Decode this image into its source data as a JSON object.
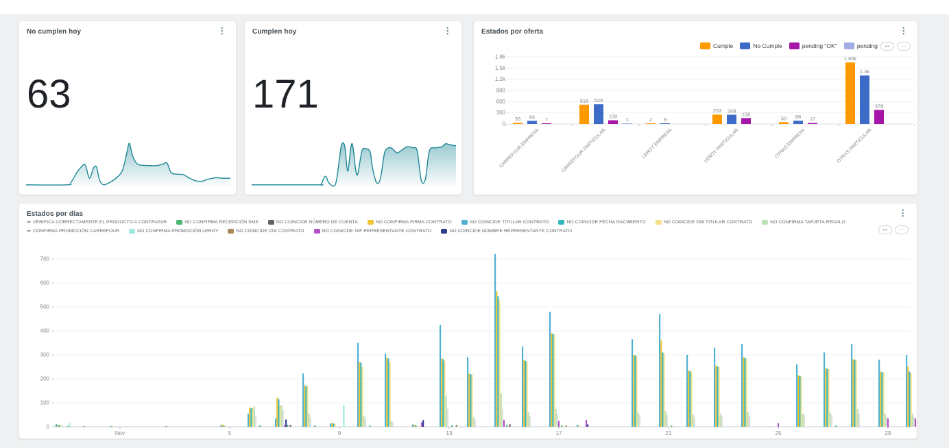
{
  "page": {
    "canvas_bg": "#eff0f1",
    "top_strip_bg": "#ffffff",
    "card_bg": "#ffffff",
    "chip_icon_a": "●●",
    "chip_icon_b": "──"
  },
  "chart_data": [
    {
      "type": "scorecard_sparkline",
      "title": "No cumplen hoy",
      "value": "63",
      "menu_icon": "⋮",
      "spark_color": "#1b8795",
      "spark_points": [
        [
          0,
          3
        ],
        [
          20,
          3
        ],
        [
          22,
          8
        ],
        [
          25,
          28
        ],
        [
          27,
          38
        ],
        [
          29,
          42
        ],
        [
          31,
          16
        ],
        [
          33,
          36
        ],
        [
          34.5,
          38
        ],
        [
          36,
          12
        ],
        [
          38,
          3
        ],
        [
          41,
          8
        ],
        [
          44,
          16
        ],
        [
          47,
          30
        ],
        [
          49,
          60
        ],
        [
          50.5,
          85
        ],
        [
          52,
          62
        ],
        [
          54,
          46
        ],
        [
          56,
          42
        ],
        [
          60,
          41
        ],
        [
          64,
          41
        ],
        [
          67,
          44
        ],
        [
          69,
          46
        ],
        [
          71,
          27
        ],
        [
          74,
          24
        ],
        [
          77,
          23
        ],
        [
          80,
          16
        ],
        [
          83,
          11
        ],
        [
          86,
          10
        ],
        [
          89,
          14
        ],
        [
          93,
          17
        ],
        [
          96,
          16
        ],
        [
          100,
          16
        ]
      ]
    },
    {
      "type": "scorecard_sparkline",
      "title": "Cumplen hoy",
      "value": "171",
      "menu_icon": "⋮",
      "spark_color": "#1b8795",
      "spark_points": [
        [
          0,
          3
        ],
        [
          32,
          3
        ],
        [
          34,
          4
        ],
        [
          36,
          20
        ],
        [
          38,
          6
        ],
        [
          41,
          4
        ],
        [
          43,
          55
        ],
        [
          44,
          82
        ],
        [
          45.5,
          80
        ],
        [
          47,
          30
        ],
        [
          48.5,
          76
        ],
        [
          49.5,
          80
        ],
        [
          51,
          30
        ],
        [
          52,
          26
        ],
        [
          54,
          70
        ],
        [
          56,
          74
        ],
        [
          58,
          68
        ],
        [
          59,
          40
        ],
        [
          61,
          8
        ],
        [
          63,
          15
        ],
        [
          65,
          65
        ],
        [
          67,
          76
        ],
        [
          69,
          74
        ],
        [
          71,
          66
        ],
        [
          73,
          70
        ],
        [
          76,
          78
        ],
        [
          79,
          76
        ],
        [
          81,
          70
        ],
        [
          83,
          12
        ],
        [
          85,
          14
        ],
        [
          87,
          70
        ],
        [
          90,
          76
        ],
        [
          93,
          78
        ],
        [
          95,
          84
        ],
        [
          97,
          82
        ],
        [
          100,
          80
        ]
      ]
    },
    {
      "type": "bar",
      "title": "Estados por oferta",
      "menu_icon": "⋮",
      "legend_position": "top-right",
      "grid": true,
      "ylim": [
        0,
        1800
      ],
      "y_ticks": [
        "0",
        "300",
        "600",
        "900",
        "1.2k",
        "1.5k",
        "1.8k"
      ],
      "y_step": 300,
      "categories": [
        "CARREFOUR EMPRESA",
        "CARREFOUR PARTICULAR",
        "LEROY EMPRESA",
        "LEROY PARTICULAR",
        "OTRAS EMPRESA",
        "OTRAS PARTICULAR"
      ],
      "series": [
        {
          "name": "Cumple",
          "color": "#ff9900",
          "values": [
            33,
            518,
            2,
            253,
            50,
            1650
          ],
          "labels": [
            "33",
            "518",
            "2",
            "253",
            "50",
            "1.65k"
          ]
        },
        {
          "name": "No Cumple",
          "color": "#3d6cc8",
          "values": [
            84,
            529,
            9,
            248,
            88,
            1300
          ],
          "labels": [
            "84",
            "529",
            "9",
            "248",
            "88",
            "1.3k"
          ]
        },
        {
          "name": "pending \"OK\"",
          "color": "#a616a8",
          "values": [
            7,
            100,
            0,
            158,
            27,
            378
          ],
          "labels": [
            "7",
            "100",
            "",
            "158",
            "27",
            "378"
          ]
        },
        {
          "name": "pending",
          "color": "#a2ace4",
          "values": [
            0,
            1,
            0,
            0,
            0,
            0
          ],
          "labels": [
            "",
            "1",
            "",
            "",
            "",
            ""
          ]
        }
      ]
    },
    {
      "type": "bar",
      "title": "Estados por días",
      "menu_icon": "⋮",
      "grid": true,
      "ylim": [
        0,
        760
      ],
      "y_ticks": [
        "0",
        "100",
        "200",
        "300",
        "400",
        "500",
        "600",
        "700"
      ],
      "y_step": 100,
      "days": 32,
      "x_ticks": [
        {
          "index": 2,
          "label": "Nov"
        },
        {
          "index": 6,
          "label": "5"
        },
        {
          "index": 10,
          "label": "9"
        },
        {
          "index": 14,
          "label": "13"
        },
        {
          "index": 18,
          "label": "17"
        },
        {
          "index": 22,
          "label": "21"
        },
        {
          "index": 26,
          "label": "25"
        },
        {
          "index": 30,
          "label": "29"
        }
      ],
      "legend_rows": [
        8,
        5
      ],
      "draw_order": [
        4,
        3,
        5,
        6,
        7,
        8,
        11,
        12,
        1,
        9,
        2,
        10,
        0
      ],
      "series": [
        {
          "name": "VERIFICA CORRECTAMENTE EL PRODUCTO A CONTRATAR",
          "color": "#ffffff",
          "legend_swatch": "dash",
          "values": [
            0,
            0,
            0,
            0,
            0,
            0,
            0,
            0,
            0,
            0,
            0,
            0,
            0,
            0,
            0,
            0,
            0,
            0,
            0,
            0,
            0,
            0,
            0,
            0,
            0,
            0,
            0,
            0,
            0,
            0,
            0,
            0
          ]
        },
        {
          "name": "NO CONFIRMA RECEPCIÓN SMS",
          "color": "#4db56f",
          "legend_swatch": "box",
          "values": [
            3,
            0,
            0,
            0,
            0,
            0,
            0,
            6,
            8,
            6,
            0,
            5,
            0,
            0,
            6,
            0,
            8,
            0,
            6,
            0,
            0,
            0,
            5,
            0,
            0,
            0,
            0,
            0,
            5,
            0,
            0,
            0
          ]
        },
        {
          "name": "NO COINCIDE NÚMERO DE CUENTA",
          "color": "#5f6368",
          "legend_swatch": "box",
          "values": [
            0,
            0,
            0,
            0,
            0,
            0,
            0,
            0,
            8,
            0,
            0,
            0,
            0,
            0,
            0,
            0,
            10,
            0,
            0,
            0,
            0,
            0,
            0,
            0,
            0,
            0,
            0,
            0,
            0,
            0,
            0,
            0
          ]
        },
        {
          "name": "NO CONFIRMA FIRMA CONTRATO",
          "color": "#f1c232",
          "legend_swatch": "box",
          "values": [
            8,
            2,
            2,
            0,
            2,
            0,
            10,
            80,
            122,
            172,
            15,
            270,
            288,
            8,
            285,
            222,
            565,
            278,
            390,
            5,
            0,
            300,
            360,
            235,
            255,
            290,
            0,
            215,
            245,
            282,
            230,
            250
          ]
        },
        {
          "name": "NO COINCIDE TITULAR CONTRATO",
          "color": "#4fb0d4",
          "legend_swatch": "box",
          "values": [
            12,
            3,
            3,
            0,
            3,
            0,
            6,
            55,
            35,
            222,
            14,
            350,
            305,
            10,
            425,
            290,
            720,
            335,
            480,
            8,
            0,
            365,
            470,
            300,
            330,
            345,
            0,
            260,
            310,
            345,
            280,
            300
          ]
        },
        {
          "name": "NO COINCIDE FECHA NACIMIENTO",
          "color": "#35b7c0",
          "legend_swatch": "box",
          "values": [
            8,
            0,
            0,
            0,
            0,
            0,
            5,
            78,
            115,
            170,
            14,
            268,
            285,
            6,
            282,
            220,
            545,
            275,
            388,
            0,
            0,
            298,
            310,
            232,
            252,
            288,
            0,
            212,
            242,
            280,
            228,
            230
          ]
        },
        {
          "name": "NO COINCIDE DNI TITULAR CONTRATO",
          "color": "#f6e08e",
          "legend_swatch": "box",
          "values": [
            6,
            0,
            0,
            0,
            0,
            0,
            4,
            80,
            90,
            168,
            12,
            250,
            270,
            5,
            275,
            218,
            530,
            270,
            385,
            0,
            0,
            295,
            305,
            230,
            250,
            285,
            0,
            210,
            240,
            278,
            225,
            225
          ]
        },
        {
          "name": "NO CONFIRMA TARJETA REGALO",
          "color": "#bce0b6",
          "legend_swatch": "box",
          "values": [
            4,
            0,
            0,
            0,
            0,
            0,
            0,
            85,
            90,
            55,
            0,
            45,
            25,
            0,
            130,
            40,
            140,
            60,
            75,
            0,
            0,
            60,
            65,
            50,
            55,
            60,
            0,
            55,
            60,
            75,
            55,
            55
          ]
        },
        {
          "name": "CONFIRMA PROMOCIÓN CARREFOUR",
          "color": "#dcdfda",
          "legend_swatch": "dash",
          "values": [
            0,
            0,
            0,
            0,
            0,
            0,
            0,
            45,
            70,
            35,
            0,
            35,
            20,
            0,
            75,
            30,
            75,
            45,
            55,
            0,
            0,
            50,
            50,
            40,
            45,
            45,
            0,
            50,
            50,
            55,
            40,
            40
          ]
        },
        {
          "name": "NO CONFIRMA PROMOCIÓN LEROY",
          "color": "#9de9e2",
          "legend_swatch": "box",
          "values": [
            15,
            0,
            0,
            0,
            0,
            0,
            0,
            0,
            0,
            0,
            90,
            0,
            0,
            0,
            0,
            0,
            0,
            0,
            0,
            0,
            0,
            0,
            0,
            0,
            0,
            0,
            0,
            0,
            0,
            0,
            0,
            0
          ]
        },
        {
          "name": "NO COINCIDE DNI CONTRATO",
          "color": "#a98a56",
          "legend_swatch": "box",
          "values": [
            0,
            0,
            0,
            0,
            0,
            0,
            0,
            0,
            0,
            0,
            0,
            0,
            0,
            0,
            8,
            0,
            0,
            0,
            6,
            0,
            0,
            0,
            0,
            0,
            0,
            0,
            0,
            0,
            0,
            0,
            0,
            0
          ]
        },
        {
          "name": "NO COINCIDE NIF REPRESENTANTE CONTRATO",
          "color": "#b352c5",
          "legend_swatch": "box",
          "values": [
            0,
            0,
            0,
            0,
            0,
            0,
            0,
            0,
            6,
            0,
            0,
            0,
            0,
            18,
            0,
            0,
            28,
            0,
            25,
            28,
            0,
            0,
            0,
            0,
            0,
            0,
            15,
            0,
            0,
            0,
            35,
            35
          ]
        },
        {
          "name": "NO COINCIDE NOMBRE REPRESENTANTE CONTRATO",
          "color": "#303c8e",
          "legend_swatch": "box",
          "values": [
            0,
            0,
            0,
            0,
            0,
            0,
            0,
            0,
            30,
            0,
            0,
            0,
            0,
            28,
            0,
            0,
            0,
            0,
            0,
            10,
            0,
            0,
            0,
            0,
            0,
            0,
            0,
            0,
            0,
            0,
            0,
            0
          ]
        }
      ]
    }
  ]
}
